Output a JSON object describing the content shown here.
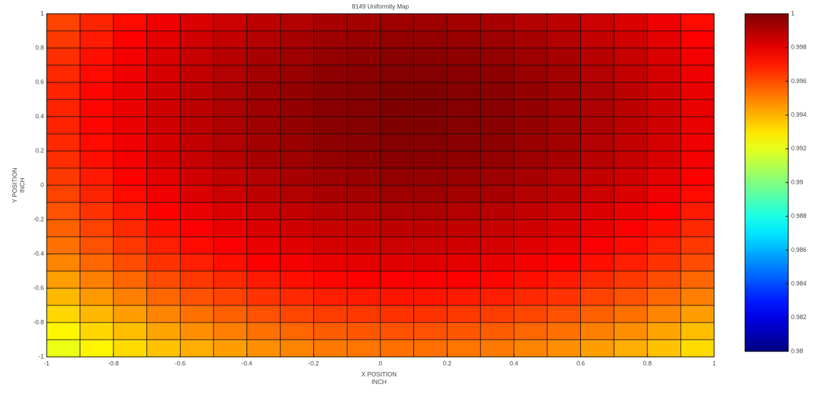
{
  "chart_data": {
    "type": "heatmap",
    "title": "8149 Uniformity Map",
    "xlabel": [
      "X POSITION",
      "INCH"
    ],
    "ylabel": [
      "Y POSITION",
      "INCH"
    ],
    "colormap": "jet",
    "x": [
      -0.95,
      -0.85,
      -0.75,
      -0.65,
      -0.55,
      -0.45,
      -0.35,
      -0.25,
      -0.15,
      -0.05,
      0.05,
      0.15,
      0.25,
      0.35,
      0.45,
      0.55,
      0.65,
      0.75,
      0.85,
      0.95
    ],
    "y": [
      0.95,
      0.85,
      0.75,
      0.65,
      0.55,
      0.45,
      0.35,
      0.25,
      0.15,
      0.05,
      -0.05,
      -0.15,
      -0.25,
      -0.35,
      -0.45,
      -0.55,
      -0.65,
      -0.75,
      -0.85,
      -0.95
    ],
    "values": [
      [
        0.9962,
        0.9968,
        0.9973,
        0.9978,
        0.9982,
        0.9985,
        0.9988,
        0.999,
        0.9992,
        0.9993,
        0.9994,
        0.9994,
        0.9993,
        0.9992,
        0.999,
        0.9988,
        0.9985,
        0.9982,
        0.9978,
        0.9973
      ],
      [
        0.9964,
        0.997,
        0.9975,
        0.998,
        0.9984,
        0.9987,
        0.999,
        0.9992,
        0.9994,
        0.9995,
        0.9996,
        0.9996,
        0.9995,
        0.9994,
        0.9992,
        0.999,
        0.9987,
        0.9984,
        0.998,
        0.9975
      ],
      [
        0.9966,
        0.9972,
        0.9977,
        0.9982,
        0.9986,
        0.9989,
        0.9992,
        0.9994,
        0.9996,
        0.9997,
        0.9998,
        0.9998,
        0.9997,
        0.9996,
        0.9994,
        0.9992,
        0.9989,
        0.9986,
        0.9982,
        0.9977
      ],
      [
        0.9967,
        0.9973,
        0.9978,
        0.9983,
        0.9987,
        0.999,
        0.9993,
        0.9995,
        0.9997,
        0.9998,
        0.9999,
        0.9999,
        0.9998,
        0.9997,
        0.9995,
        0.9993,
        0.999,
        0.9987,
        0.9983,
        0.9978
      ],
      [
        0.9968,
        0.9974,
        0.9979,
        0.9984,
        0.9988,
        0.9991,
        0.9994,
        0.9996,
        0.9998,
        0.9999,
        1,
        1,
        0.9999,
        0.9998,
        0.9996,
        0.9994,
        0.9991,
        0.9988,
        0.9984,
        0.9979
      ],
      [
        0.9968,
        0.9974,
        0.9979,
        0.9984,
        0.9988,
        0.9991,
        0.9994,
        0.9996,
        0.9998,
        0.9999,
        1,
        1,
        0.9999,
        0.9998,
        0.9996,
        0.9994,
        0.9991,
        0.9988,
        0.9984,
        0.9979
      ],
      [
        0.9968,
        0.9974,
        0.9979,
        0.9984,
        0.9988,
        0.9991,
        0.9994,
        0.9996,
        0.9998,
        0.9999,
        1,
        1,
        0.9999,
        0.9998,
        0.9996,
        0.9994,
        0.9991,
        0.9988,
        0.9984,
        0.9979
      ],
      [
        0.9967,
        0.9973,
        0.9978,
        0.9983,
        0.9987,
        0.999,
        0.9993,
        0.9995,
        0.9997,
        0.9998,
        0.9999,
        0.9999,
        0.9998,
        0.9997,
        0.9995,
        0.9993,
        0.999,
        0.9987,
        0.9983,
        0.9978
      ],
      [
        0.9966,
        0.9972,
        0.9977,
        0.9982,
        0.9986,
        0.9989,
        0.9992,
        0.9994,
        0.9996,
        0.9997,
        0.9998,
        0.9998,
        0.9997,
        0.9996,
        0.9994,
        0.9992,
        0.9989,
        0.9986,
        0.9982,
        0.9977
      ],
      [
        0.9964,
        0.997,
        0.9975,
        0.998,
        0.9984,
        0.9987,
        0.999,
        0.9992,
        0.9994,
        0.9995,
        0.9996,
        0.9996,
        0.9995,
        0.9994,
        0.9992,
        0.999,
        0.9987,
        0.9984,
        0.998,
        0.9975
      ],
      [
        0.9962,
        0.9968,
        0.9973,
        0.9978,
        0.9982,
        0.9985,
        0.9988,
        0.999,
        0.9992,
        0.9993,
        0.9994,
        0.9994,
        0.9993,
        0.9992,
        0.999,
        0.9988,
        0.9985,
        0.9982,
        0.9978,
        0.9973
      ],
      [
        0.9959,
        0.9965,
        0.997,
        0.9975,
        0.9979,
        0.9982,
        0.9985,
        0.9987,
        0.9989,
        0.999,
        0.9991,
        0.9991,
        0.999,
        0.9989,
        0.9987,
        0.9985,
        0.9982,
        0.9979,
        0.9975,
        0.997
      ],
      [
        0.9956,
        0.9962,
        0.9967,
        0.9972,
        0.9976,
        0.9979,
        0.9982,
        0.9984,
        0.9986,
        0.9987,
        0.9988,
        0.9988,
        0.9987,
        0.9986,
        0.9984,
        0.9982,
        0.9979,
        0.9976,
        0.9972,
        0.9967
      ],
      [
        0.9953,
        0.9959,
        0.9964,
        0.9969,
        0.9973,
        0.9976,
        0.9979,
        0.9981,
        0.9983,
        0.9984,
        0.9985,
        0.9985,
        0.9984,
        0.9983,
        0.9981,
        0.9979,
        0.9976,
        0.9973,
        0.9969,
        0.9964
      ],
      [
        0.9949,
        0.9955,
        0.996,
        0.9965,
        0.9969,
        0.9972,
        0.9975,
        0.9977,
        0.9979,
        0.998,
        0.9981,
        0.9981,
        0.998,
        0.9979,
        0.9977,
        0.9975,
        0.9972,
        0.9969,
        0.9965,
        0.996
      ],
      [
        0.9944,
        0.995,
        0.9955,
        0.996,
        0.9964,
        0.9967,
        0.997,
        0.9972,
        0.9974,
        0.9975,
        0.9976,
        0.9976,
        0.9975,
        0.9974,
        0.9972,
        0.997,
        0.9967,
        0.9964,
        0.996,
        0.9955
      ],
      [
        0.9939,
        0.9945,
        0.995,
        0.9955,
        0.9959,
        0.9962,
        0.9965,
        0.9967,
        0.9969,
        0.997,
        0.9971,
        0.9971,
        0.997,
        0.9969,
        0.9967,
        0.9965,
        0.9962,
        0.9959,
        0.9955,
        0.995
      ],
      [
        0.9933,
        0.9939,
        0.9944,
        0.9949,
        0.9953,
        0.9956,
        0.9959,
        0.9961,
        0.9963,
        0.9964,
        0.9965,
        0.9965,
        0.9964,
        0.9963,
        0.9961,
        0.9959,
        0.9956,
        0.9953,
        0.9949,
        0.9944
      ],
      [
        0.9927,
        0.9933,
        0.9938,
        0.9943,
        0.9947,
        0.995,
        0.9953,
        0.9955,
        0.9957,
        0.9958,
        0.9959,
        0.9959,
        0.9958,
        0.9957,
        0.9955,
        0.9953,
        0.995,
        0.9947,
        0.9943,
        0.9938
      ],
      [
        0.9921,
        0.9927,
        0.9932,
        0.9937,
        0.9941,
        0.9944,
        0.9947,
        0.9949,
        0.9951,
        0.9952,
        0.9953,
        0.9953,
        0.9952,
        0.9951,
        0.9949,
        0.9947,
        0.9944,
        0.9941,
        0.9937,
        0.9932
      ]
    ],
    "xlim": [
      -1,
      1
    ],
    "ylim": [
      -1,
      1
    ],
    "xticks": [
      -1,
      -0.8,
      -0.6,
      -0.4,
      -0.2,
      0,
      0.2,
      0.4,
      0.6,
      0.8,
      1
    ],
    "yticks": [
      -1,
      -0.8,
      -0.6,
      -0.4,
      -0.2,
      0,
      0.2,
      0.4,
      0.6,
      0.8,
      1
    ],
    "clim": [
      0.98,
      1
    ],
    "cticks": [
      0.98,
      0.982,
      0.984,
      0.986,
      0.988,
      0.99,
      0.992,
      0.994,
      0.996,
      0.998,
      1
    ]
  }
}
